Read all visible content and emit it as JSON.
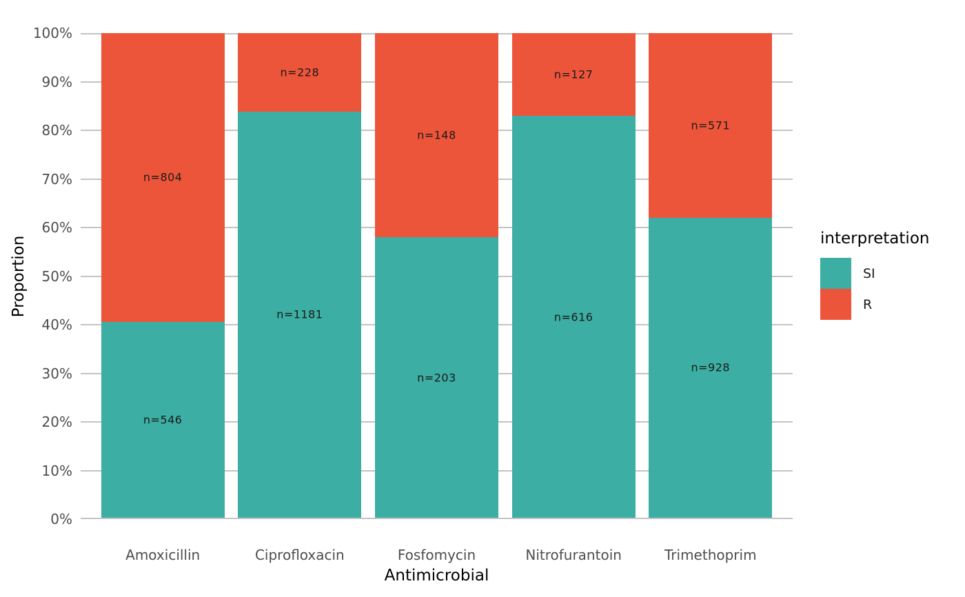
{
  "chart_data": {
    "type": "bar",
    "variant": "stacked-100-percent",
    "title": "",
    "xlabel": "Antimicrobial",
    "ylabel": "Proportion",
    "categories": [
      "Amoxicillin",
      "Ciprofloxacin",
      "Fosfomycin",
      "Nitrofurantoin",
      "Trimethoprim"
    ],
    "series": [
      {
        "name": "SI",
        "color": "#3CAEA3",
        "values": [
          546,
          1181,
          203,
          616,
          928
        ],
        "labels": [
          "n=546",
          "n=1181",
          "n=203",
          "n=616",
          "n=928"
        ]
      },
      {
        "name": "R",
        "color": "#ED553B",
        "values": [
          804,
          228,
          148,
          127,
          571
        ],
        "labels": [
          "n=804",
          "n=228",
          "n=148",
          "n=127",
          "n=571"
        ]
      }
    ],
    "si_proportion_pct": [
      40.4,
      83.8,
      57.8,
      82.9,
      61.9
    ],
    "y_ticks": [
      "0%",
      "10%",
      "20%",
      "30%",
      "40%",
      "50%",
      "60%",
      "70%",
      "80%",
      "90%",
      "100%"
    ],
    "ylim": [
      0,
      100
    ],
    "grid": "horizontal-major-only",
    "legend": {
      "title": "interpretation",
      "position": "right",
      "entries": [
        "SI",
        "R"
      ]
    }
  },
  "colors": {
    "si": "#3CAEA3",
    "r": "#ED553B",
    "gridline": "#C3C3C3",
    "tick_text": "#4D4D4D",
    "bar_label_text": "#1A1A1A",
    "axis_title_text": "#000000",
    "background": "#FFFFFF"
  }
}
